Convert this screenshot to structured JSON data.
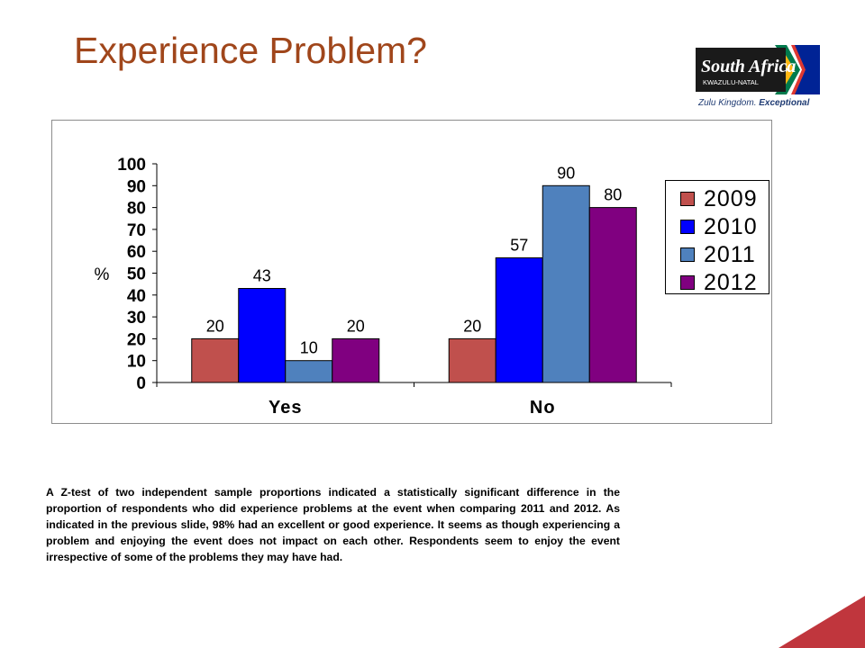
{
  "slide": {
    "title": "Experience Problem?",
    "commentary": "A Z-test of two independent sample proportions indicated a statistically significant difference in the proportion of respondents who did experience problems at the event when comparing 2011 and 2012. As indicated in the previous slide, 98% had an excellent or good experience. It seems as though experiencing a problem and enjoying the event does not impact on each other. Respondents seem to enjoy the event irrespective of some of the problems they may have had."
  },
  "logo": {
    "brand": "South Africa",
    "region": "KWAZULU-NATAL",
    "tagline_plain": "Zulu Kingdom. ",
    "tagline_bold": "Exceptional"
  },
  "colors": {
    "title": "#a0461b",
    "accent_triangle": "#c0363d"
  },
  "chart_data": {
    "type": "bar",
    "categories": [
      "Yes",
      "No"
    ],
    "series": [
      {
        "name": "2009",
        "values": [
          20,
          20
        ],
        "color": "#c0504d"
      },
      {
        "name": "2010",
        "values": [
          43,
          57
        ],
        "color": "#0000ff"
      },
      {
        "name": "2011",
        "values": [
          10,
          90
        ],
        "color": "#4f81bd"
      },
      {
        "name": "2012",
        "values": [
          20,
          80
        ],
        "color": "#800080"
      }
    ],
    "ylabel": "%",
    "xlabel": "",
    "ylim": [
      0,
      100
    ],
    "yticks": [
      0,
      10,
      20,
      30,
      40,
      50,
      60,
      70,
      80,
      90,
      100
    ],
    "grid": false,
    "legend_position": "right",
    "data_labels": true
  }
}
